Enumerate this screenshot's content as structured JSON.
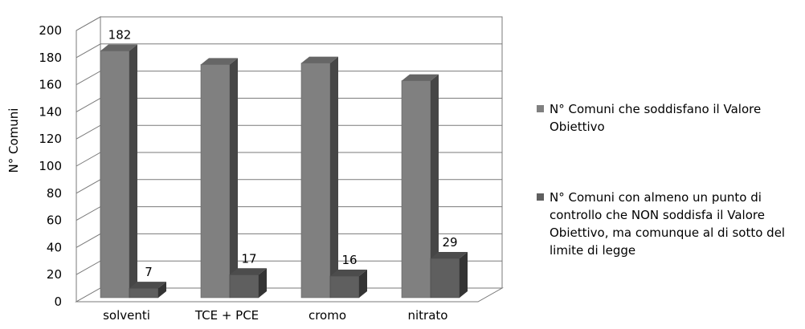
{
  "chart_data": {
    "type": "bar",
    "categories": [
      "solventi",
      "TCE + PCE",
      "cromo",
      "nitrato"
    ],
    "series": [
      {
        "name": "N° Comuni che soddisfano il Valore Obiettivo",
        "values": [
          182,
          172,
          173,
          160
        ],
        "color": "#808080",
        "labels": [
          "182",
          "",
          "",
          ""
        ]
      },
      {
        "name": "N° Comuni con almeno un punto di controllo che NON soddisfa il Valore Obiettivo, ma comunque al di sotto del limite di legge",
        "values": [
          7,
          17,
          16,
          29
        ],
        "color": "#5f5f5f",
        "labels": [
          "7",
          "17",
          "16",
          "29"
        ]
      }
    ],
    "ylabel": "N° Comuni",
    "ylim": [
      0,
      200
    ],
    "yticks": [
      "0",
      "20",
      "40",
      "60",
      "80",
      "100",
      "120",
      "140",
      "160",
      "180",
      "200"
    ],
    "grid": true,
    "legend_position": "right",
    "three_d": true
  }
}
